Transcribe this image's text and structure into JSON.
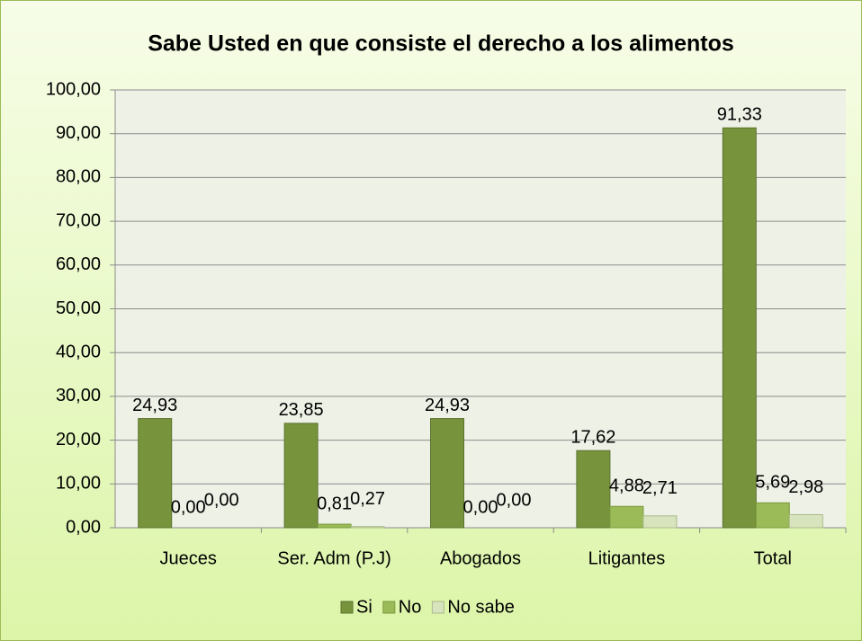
{
  "chart_data": {
    "type": "bar",
    "title": "Sabe Usted en que consiste el derecho a los alimentos",
    "categories": [
      "Jueces",
      "Ser. Adm (P.J)",
      "Abogados",
      "Litigantes",
      "Total"
    ],
    "series": [
      {
        "name": "Si",
        "color": "#77933c",
        "values": [
          24.93,
          23.85,
          24.93,
          17.62,
          91.33
        ],
        "value_labels": [
          "24,93",
          "23,85",
          "24,93",
          "17,62",
          "91,33"
        ]
      },
      {
        "name": "No",
        "color": "#9bbb59",
        "values": [
          0,
          0.81,
          0,
          4.88,
          5.69
        ],
        "value_labels": [
          "0,00",
          "0,81",
          "0,00",
          "4,88",
          "5,69"
        ]
      },
      {
        "name": "No sabe",
        "color": "#d7e4bd",
        "values": [
          0,
          0.27,
          0,
          2.71,
          2.98
        ],
        "value_labels": [
          "0,00",
          "0,27",
          "0,00",
          "2,71",
          "2,98"
        ]
      }
    ],
    "ylim": [
      0,
      100
    ],
    "yticks": [
      {
        "value": 0,
        "label": "0,00"
      },
      {
        "value": 10,
        "label": "10,00"
      },
      {
        "value": 20,
        "label": "20,00"
      },
      {
        "value": 30,
        "label": "30,00"
      },
      {
        "value": 40,
        "label": "40,00"
      },
      {
        "value": 50,
        "label": "50,00"
      },
      {
        "value": 60,
        "label": "60,00"
      },
      {
        "value": 70,
        "label": "70,00"
      },
      {
        "value": 80,
        "label": "80,00"
      },
      {
        "value": 90,
        "label": "90,00"
      },
      {
        "value": 100,
        "label": "100,00"
      }
    ],
    "grid": true,
    "legend": "bottom"
  }
}
